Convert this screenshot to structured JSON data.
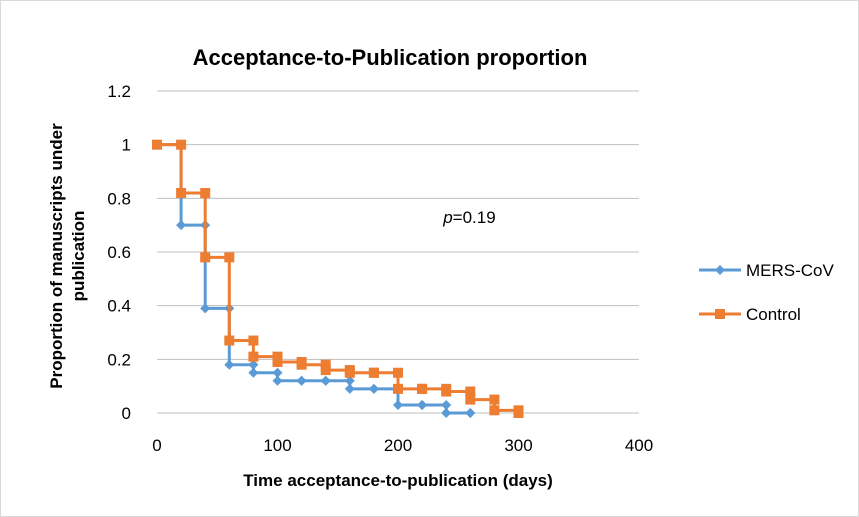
{
  "chart_data": {
    "type": "line",
    "title": "Acceptance-to-Publication  proportion",
    "xlabel": "Time acceptance-to-publication (days)",
    "ylabel_line1": "Proportion  of manuscripts under",
    "ylabel_line2": "publication",
    "xlim": [
      0,
      400
    ],
    "ylim": [
      0,
      1.2
    ],
    "x_ticks": [
      0,
      100,
      200,
      300,
      400
    ],
    "y_ticks": [
      0,
      0.2,
      0.4,
      0.6,
      0.8,
      1,
      1.2
    ],
    "x_tick_labels": [
      "0",
      "100",
      "200",
      "300",
      "400"
    ],
    "y_tick_labels": [
      "0",
      "0.2",
      "0.4",
      "0.6",
      "0.8",
      "1",
      "1.2"
    ],
    "grid": "horizontal",
    "legend_position": "right",
    "annotation": {
      "italic": "p",
      "rest": "=0.19",
      "x": 240,
      "y": 0.73
    },
    "series": [
      {
        "name": "MERS-CoV",
        "color": "#5B9BD5",
        "marker": "diamond",
        "x": [
          0,
          20,
          40,
          60,
          80,
          100,
          120,
          140,
          160,
          180,
          200,
          220,
          240,
          260
        ],
        "values": [
          1.0,
          0.7,
          0.39,
          0.18,
          0.15,
          0.12,
          0.12,
          0.12,
          0.09,
          0.09,
          0.03,
          0.03,
          0.0,
          0.0
        ]
      },
      {
        "name": "Control",
        "color": "#ED7D31",
        "marker": "square",
        "x": [
          0,
          20,
          40,
          60,
          80,
          100,
          120,
          140,
          160,
          180,
          200,
          220,
          240,
          260,
          280,
          300
        ],
        "values": [
          1.0,
          0.82,
          0.58,
          0.27,
          0.21,
          0.19,
          0.18,
          0.16,
          0.15,
          0.15,
          0.09,
          0.09,
          0.08,
          0.05,
          0.01,
          0.0
        ]
      }
    ]
  }
}
